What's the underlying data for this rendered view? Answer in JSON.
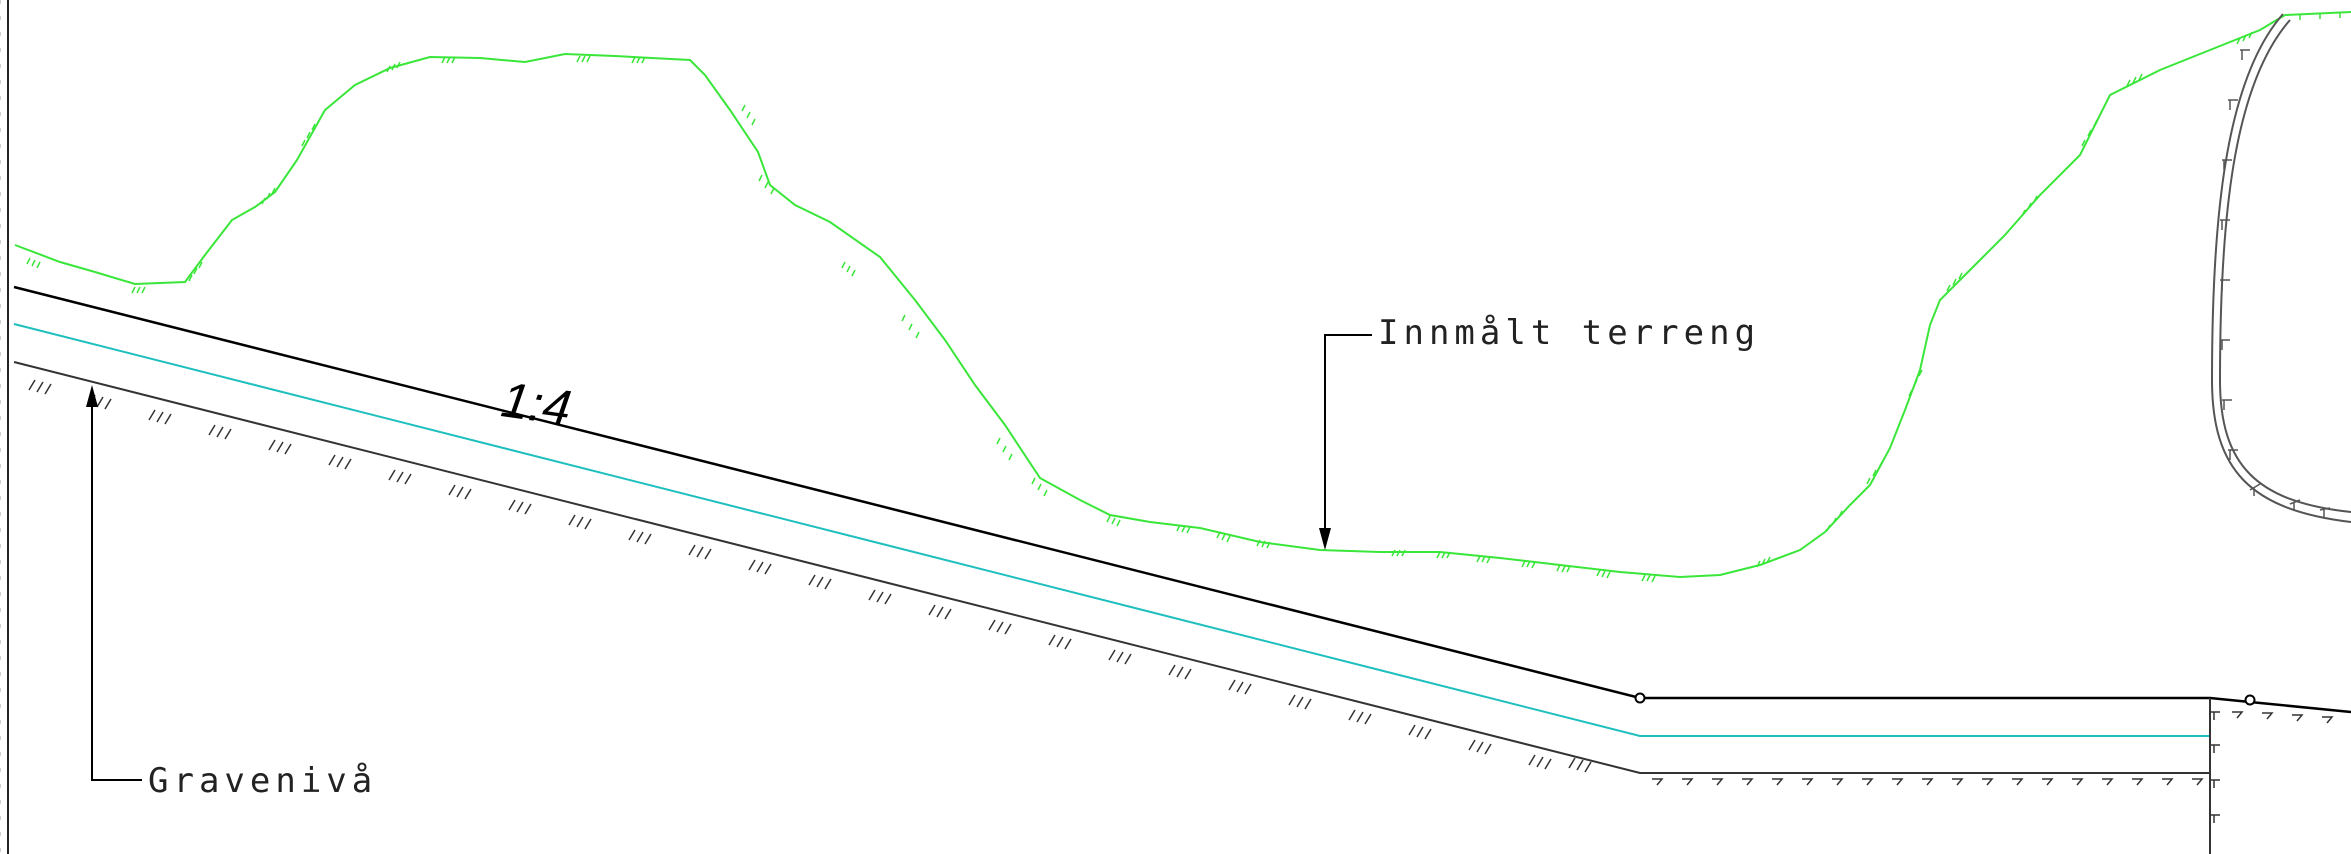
{
  "drawing": {
    "labels": {
      "slope_ratio": "1:4",
      "terrain": "Innmålt terreng",
      "excavation_level": "Gravenivå"
    },
    "colors": {
      "terrain": "#39e639",
      "design_surface": "#000000",
      "layer_line": "#1fbfbf",
      "excavation": "#333333",
      "tunnel": "#555555"
    }
  }
}
